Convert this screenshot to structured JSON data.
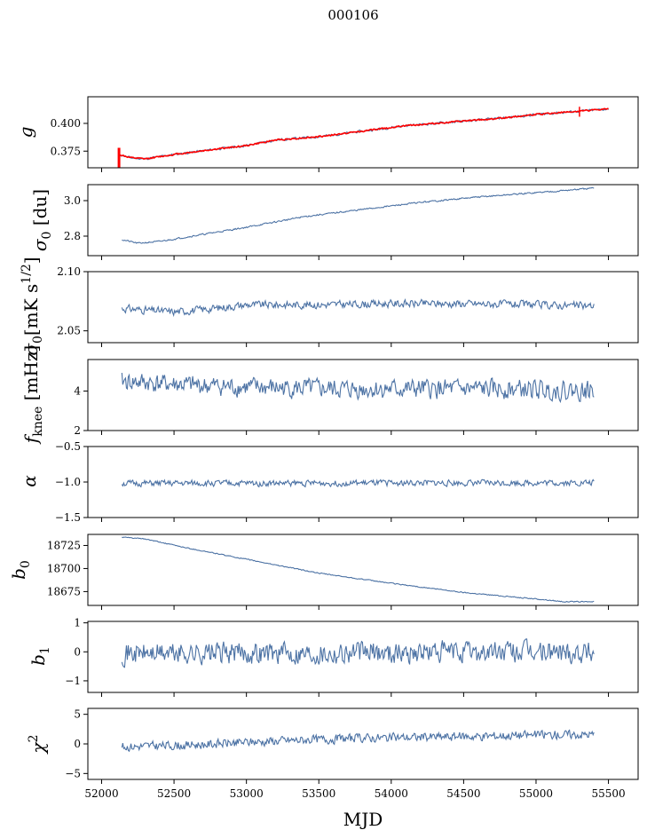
{
  "title": "000106",
  "colors": {
    "series": "#4c72a4",
    "model": "#ff0000",
    "axes": "#000000"
  },
  "chart_data": [
    {
      "type": "line",
      "panel": "g",
      "ylabel": "g",
      "ylim": [
        0.36,
        0.424
      ],
      "yticks": [
        {
          "v": 0.375,
          "label": "0.375"
        },
        {
          "v": 0.4,
          "label": "0.400"
        }
      ],
      "series": [
        {
          "x": [
            52120,
            52200,
            52300,
            52500,
            52800,
            53000,
            53200,
            53500,
            53800,
            54100,
            54400,
            54700,
            55000,
            55300,
            55500
          ],
          "y": [
            0.372,
            0.369,
            0.368,
            0.372,
            0.377,
            0.38,
            0.385,
            0.388,
            0.393,
            0.398,
            0.401,
            0.404,
            0.408,
            0.411,
            0.413
          ],
          "color": "#4c72a4",
          "noise": 0.001,
          "seed": 11
        },
        {
          "x": [
            52120,
            52200,
            52300,
            52500,
            52800,
            53000,
            53200,
            53500,
            53800,
            54100,
            54400,
            54700,
            55000,
            55300,
            55500
          ],
          "y": [
            0.372,
            0.369,
            0.368,
            0.372,
            0.377,
            0.38,
            0.385,
            0.388,
            0.393,
            0.398,
            0.401,
            0.404,
            0.408,
            0.411,
            0.413
          ],
          "color": "#ff0000",
          "noise": 0.0006,
          "seed": 12
        }
      ]
    },
    {
      "type": "line",
      "panel": "sigma0_du",
      "ylabel": "σ0 [du]",
      "ylim": [
        2.69,
        3.09
      ],
      "yticks": [
        {
          "v": 2.8,
          "label": "2.8"
        },
        {
          "v": 3.0,
          "label": "3.0"
        }
      ],
      "series": [
        {
          "x": [
            52140,
            52250,
            52400,
            52700,
            53000,
            53400,
            53800,
            54200,
            54600,
            55000,
            55400
          ],
          "y": [
            2.78,
            2.76,
            2.77,
            2.81,
            2.85,
            2.91,
            2.95,
            2.99,
            3.02,
            3.045,
            3.07
          ],
          "color": "#4c72a4",
          "noise": 0.004,
          "seed": 21
        }
      ]
    },
    {
      "type": "line",
      "panel": "sigma0_mks",
      "ylabel": "σ0[mK s1/2]",
      "ylim": [
        2.04,
        2.1
      ],
      "yticks": [
        {
          "v": 2.05,
          "label": "2.05"
        },
        {
          "v": 2.1,
          "label": "2.10"
        }
      ],
      "series": [
        {
          "x": [
            52140,
            52500,
            52700,
            53000,
            53500,
            54000,
            54500,
            55000,
            55400
          ],
          "y": [
            2.069,
            2.066,
            2.068,
            2.072,
            2.072,
            2.073,
            2.073,
            2.072,
            2.071
          ],
          "color": "#4c72a4",
          "noise": 0.003,
          "seed": 31
        }
      ]
    },
    {
      "type": "line",
      "panel": "fknee",
      "ylabel": "fknee [mHz]",
      "ylim": [
        2.0,
        5.6
      ],
      "yticks": [
        {
          "v": 2,
          "label": "2"
        },
        {
          "v": 4,
          "label": "4"
        }
      ],
      "series": [
        {
          "x": [
            52140,
            52600,
            53000,
            53600,
            54200,
            54800,
            55400
          ],
          "y": [
            4.5,
            4.3,
            4.2,
            4.1,
            4.1,
            4.1,
            4.0
          ],
          "color": "#4c72a4",
          "noise": 0.45,
          "seed": 41
        }
      ]
    },
    {
      "type": "line",
      "panel": "alpha",
      "ylabel": "α",
      "ylim": [
        -1.5,
        -0.5
      ],
      "yticks": [
        {
          "v": -1.5,
          "label": "−1.5"
        },
        {
          "v": -1.0,
          "label": "−1.0"
        },
        {
          "v": -0.5,
          "label": "−0.5"
        }
      ],
      "series": [
        {
          "x": [
            52140,
            55400
          ],
          "y": [
            -1.02,
            -1.01
          ],
          "color": "#4c72a4",
          "noise": 0.04,
          "seed": 51
        }
      ]
    },
    {
      "type": "line",
      "panel": "b0",
      "ylabel": "b0",
      "ylim": [
        18660,
        18737
      ],
      "yticks": [
        {
          "v": 18675,
          "label": "18675"
        },
        {
          "v": 18700,
          "label": "18700"
        },
        {
          "v": 18725,
          "label": "18725"
        }
      ],
      "series": [
        {
          "x": [
            52140,
            52300,
            52600,
            53000,
            53500,
            54000,
            54500,
            55000,
            55200,
            55400
          ],
          "y": [
            18734,
            18732,
            18722,
            18710,
            18695,
            18684,
            18674,
            18667,
            18664,
            18664
          ],
          "color": "#4c72a4",
          "noise": 0.5,
          "seed": 61
        }
      ]
    },
    {
      "type": "line",
      "panel": "b1",
      "ylabel": "b1",
      "ylim": [
        -1.4,
        1.05
      ],
      "yticks": [
        {
          "v": -1,
          "label": "−1"
        },
        {
          "v": 0,
          "label": "0"
        },
        {
          "v": 1,
          "label": "1"
        }
      ],
      "series": [
        {
          "x": [
            52140,
            55400
          ],
          "y": [
            -0.05,
            0.0
          ],
          "color": "#4c72a4",
          "noise": 0.35,
          "seed": 71
        }
      ]
    },
    {
      "type": "line",
      "panel": "chi2",
      "ylabel": "χ2",
      "ylim": [
        -6,
        6
      ],
      "yticks": [
        {
          "v": -5,
          "label": "−5"
        },
        {
          "v": 0,
          "label": "0"
        },
        {
          "v": 5,
          "label": "5"
        }
      ],
      "series": [
        {
          "x": [
            52140,
            52600,
            53200,
            53800,
            54400,
            55000,
            55400
          ],
          "y": [
            -0.5,
            -0.2,
            0.5,
            1.0,
            1.2,
            1.5,
            1.6
          ],
          "color": "#4c72a4",
          "noise": 0.7,
          "seed": 81
        }
      ]
    }
  ],
  "xaxis": {
    "xlabel": "MJD",
    "xlim": [
      51905,
      55705
    ],
    "xticks": [
      52000,
      52500,
      53000,
      53500,
      54000,
      54500,
      55000,
      55500
    ]
  }
}
